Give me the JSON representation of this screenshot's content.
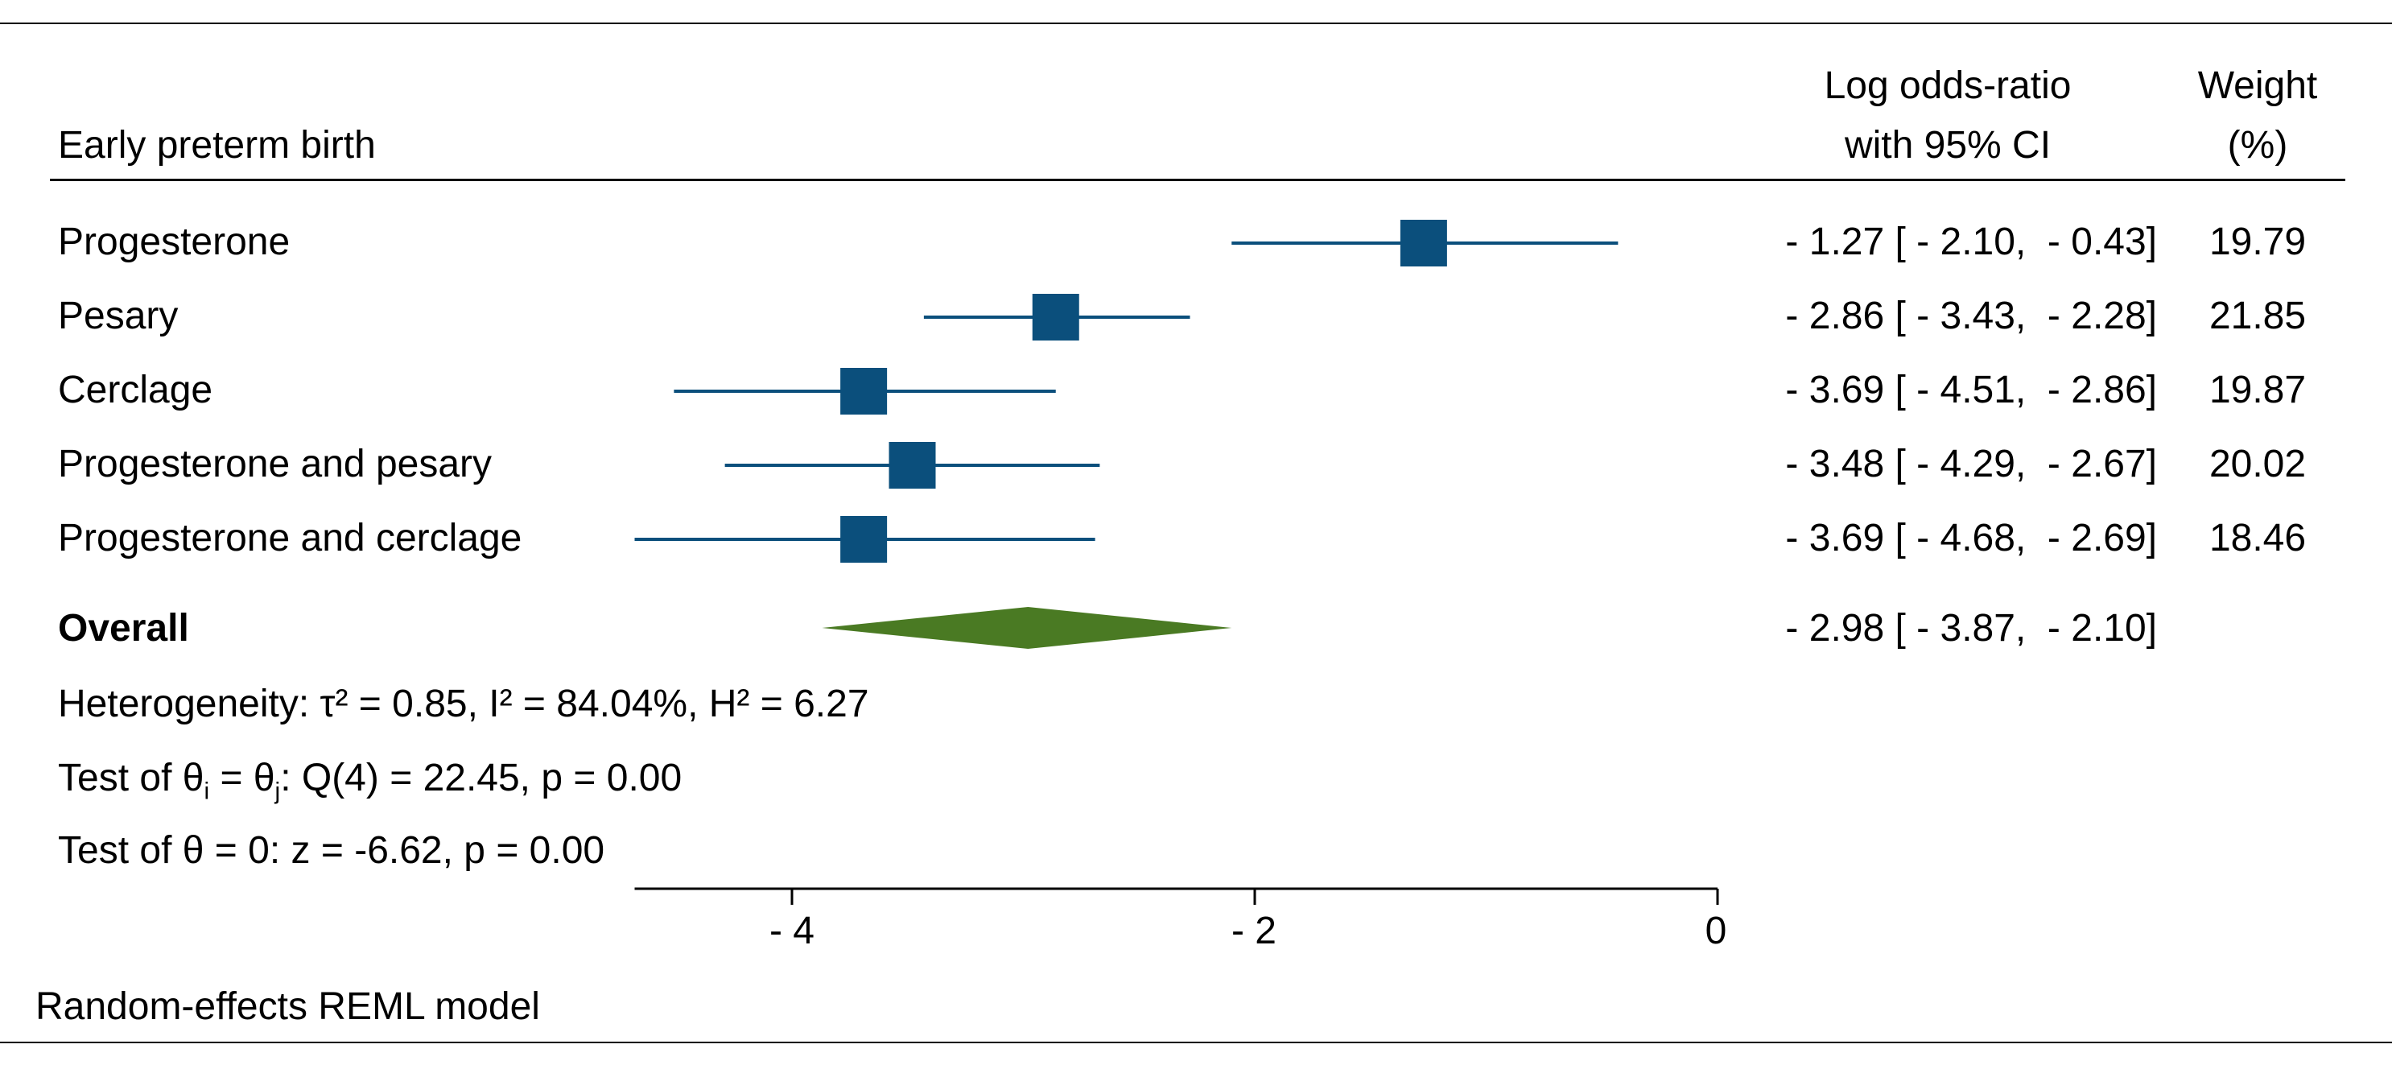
{
  "header": {
    "subgroup_title": "Early preterm birth",
    "effect_col_line1": "Log odds-ratio",
    "effect_col_line2": "with 95% CI",
    "weight_col_line1": "Weight",
    "weight_col_line2": "(%)"
  },
  "rows": [
    {
      "label": "Progesterone",
      "ci_text": "- 1.27 [ - 2.10,  - 0.43]",
      "weight": "19.79"
    },
    {
      "label": "Pesary",
      "ci_text": "- 2.86 [ - 3.43,  - 2.28]",
      "weight": "21.85"
    },
    {
      "label": "Cerclage",
      "ci_text": "- 3.69 [ - 4.51,  - 2.86]",
      "weight": "19.87"
    },
    {
      "label": "Progesterone and pesary",
      "ci_text": "- 3.48 [ - 4.29,  - 2.67]",
      "weight": "20.02"
    },
    {
      "label": "Progesterone and cerclage",
      "ci_text": "- 3.69 [ - 4.68,  - 2.69]",
      "weight": "18.46"
    }
  ],
  "overall": {
    "label": "Overall",
    "ci_text": "- 2.98 [ - 3.87,  - 2.10]"
  },
  "stats": {
    "heterogeneity": "Heterogeneity: τ² = 0.85, I² = 84.04%, H² = 6.27",
    "test_prefix": "Test of θ",
    "test_i": "i",
    "test_eq": " = θ",
    "test_j": "j",
    "test_suffix": ": Q(4) = 22.45, p = 0.00",
    "theta_zero": "Test of θ = 0: z = -6.62, p = 0.00"
  },
  "footer": {
    "model": "Random-effects REML model"
  },
  "colors": {
    "study_marker": "#0b4f7c",
    "overall_diamond": "#4a7a23",
    "axis": "#000000"
  },
  "chart_data": {
    "type": "forest",
    "title": "Early preterm birth",
    "xlabel": "",
    "xlim": [
      -4.68,
      0
    ],
    "xticks": [
      -4,
      -2,
      0
    ],
    "xtick_labels": [
      "- 4",
      "- 2",
      "0"
    ],
    "studies": [
      {
        "name": "Progesterone",
        "estimate": -1.27,
        "lower": -2.1,
        "upper": -0.43,
        "weight": 19.79
      },
      {
        "name": "Pesary",
        "estimate": -2.86,
        "lower": -3.43,
        "upper": -2.28,
        "weight": 21.85
      },
      {
        "name": "Cerclage",
        "estimate": -3.69,
        "lower": -4.51,
        "upper": -2.86,
        "weight": 19.87
      },
      {
        "name": "Progesterone and pesary",
        "estimate": -3.48,
        "lower": -4.29,
        "upper": -2.67,
        "weight": 20.02
      },
      {
        "name": "Progesterone and cerclage",
        "estimate": -3.69,
        "lower": -4.68,
        "upper": -2.69,
        "weight": 18.46
      }
    ],
    "overall": {
      "estimate": -2.98,
      "lower": -3.87,
      "upper": -2.1
    }
  }
}
